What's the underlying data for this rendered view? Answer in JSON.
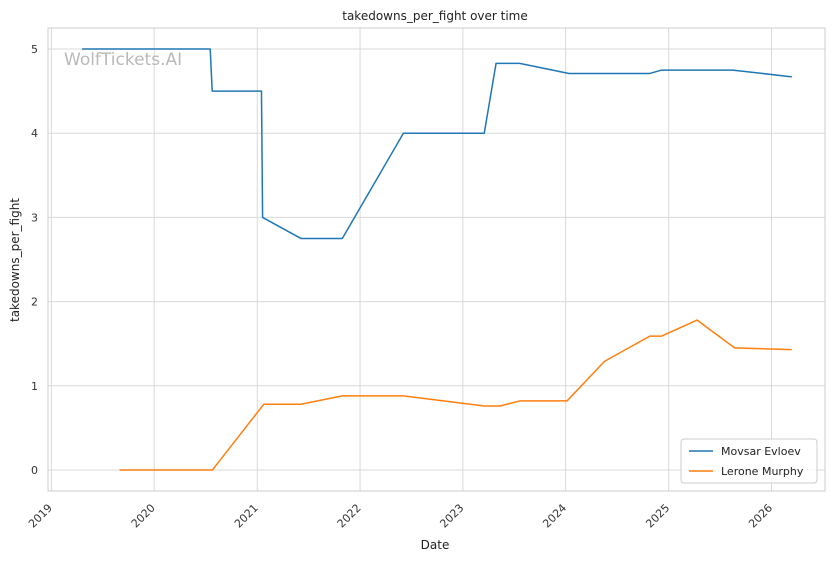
{
  "chart_data": {
    "type": "line",
    "title": "takedowns_per_fight over time",
    "xlabel": "Date",
    "ylabel": "takedowns_per_fight",
    "watermark": "WolfTickets.AI",
    "xlim": [
      "2018-12-20",
      "2026-07-10"
    ],
    "ylim": [
      -0.25,
      5.25
    ],
    "x_ticks": [
      "2019-01-01",
      "2020-01-01",
      "2021-01-01",
      "2022-01-01",
      "2023-01-01",
      "2024-01-01",
      "2025-01-01",
      "2026-01-01"
    ],
    "x_tick_labels": [
      "2019",
      "2020",
      "2021",
      "2022",
      "2023",
      "2024",
      "2025",
      "2026"
    ],
    "y_ticks": [
      0,
      1,
      2,
      3,
      4,
      5
    ],
    "y_tick_labels": [
      "0",
      "1",
      "2",
      "3",
      "4",
      "5"
    ],
    "grid": true,
    "legend_position": "bottom-right",
    "series": [
      {
        "name": "Movsar Evloev",
        "color": "#1f77b4",
        "points": [
          [
            "2019-04-20",
            5.0
          ],
          [
            "2020-07-18",
            5.0
          ],
          [
            "2020-07-25",
            4.5
          ],
          [
            "2021-01-16",
            4.5
          ],
          [
            "2021-01-20",
            3.0
          ],
          [
            "2021-06-05",
            2.75
          ],
          [
            "2021-10-30",
            2.75
          ],
          [
            "2022-06-04",
            4.0
          ],
          [
            "2023-03-18",
            4.0
          ],
          [
            "2023-04-29",
            4.83
          ],
          [
            "2023-07-22",
            4.83
          ],
          [
            "2024-01-13",
            4.71
          ],
          [
            "2024-10-26",
            4.71
          ],
          [
            "2024-12-07",
            4.75
          ],
          [
            "2025-08-16",
            4.75
          ],
          [
            "2026-03-14",
            4.67
          ]
        ]
      },
      {
        "name": "Lerone Murphy",
        "color": "#ff7f0e",
        "points": [
          [
            "2019-08-31",
            0.0
          ],
          [
            "2020-07-26",
            0.0
          ],
          [
            "2021-01-24",
            0.78
          ],
          [
            "2021-06-05",
            0.78
          ],
          [
            "2021-10-30",
            0.88
          ],
          [
            "2022-06-04",
            0.88
          ],
          [
            "2023-03-18",
            0.76
          ],
          [
            "2023-05-13",
            0.76
          ],
          [
            "2023-07-22",
            0.82
          ],
          [
            "2024-01-06",
            0.82
          ],
          [
            "2024-05-18",
            1.29
          ],
          [
            "2024-10-26",
            1.59
          ],
          [
            "2024-12-07",
            1.59
          ],
          [
            "2025-04-12",
            1.78
          ],
          [
            "2025-08-23",
            1.45
          ],
          [
            "2026-03-14",
            1.43
          ]
        ]
      }
    ]
  }
}
